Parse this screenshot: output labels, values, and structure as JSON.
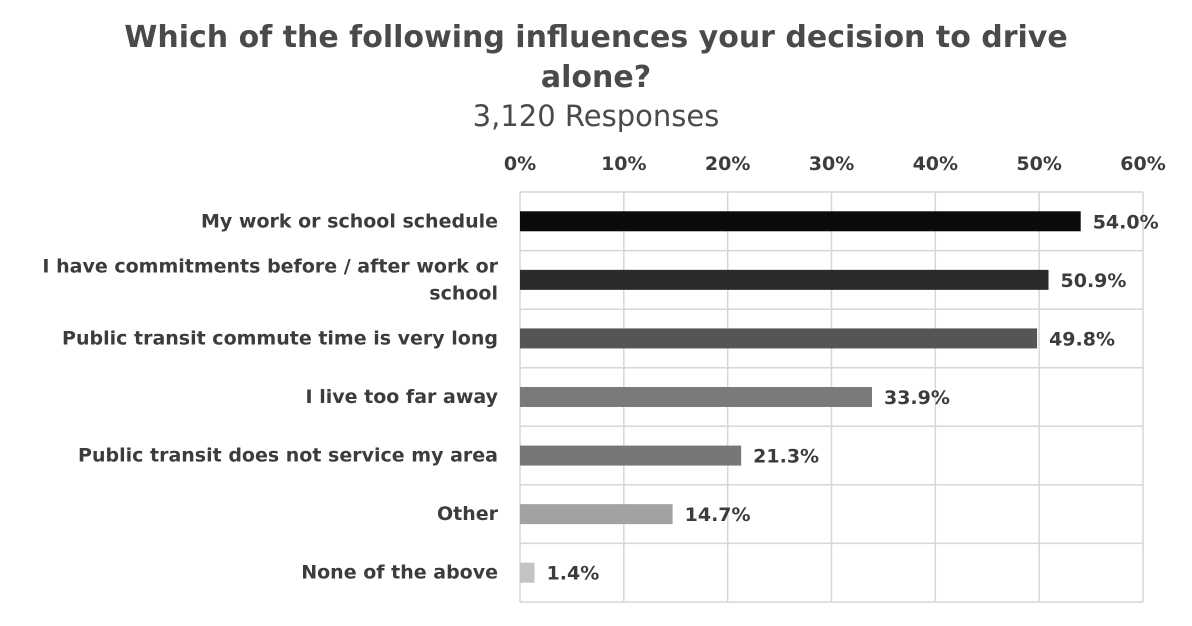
{
  "chart_data": {
    "type": "bar",
    "orientation": "horizontal",
    "title": "Which of the following influences your decision to drive alone?",
    "title_lines": [
      "Which of the following influences your decision to drive",
      "alone?"
    ],
    "subtitle": "3,120 Responses",
    "categories": [
      "My work or school schedule",
      "I have commitments before / after work or school",
      "Public transit commute time is very long",
      "I live too far away",
      "Public transit does not service my area",
      "Other",
      "None of the above"
    ],
    "category_lines": [
      [
        "My work or school schedule"
      ],
      [
        "I have commitments before / after work or",
        "school"
      ],
      [
        "Public transit commute time is very long"
      ],
      [
        "I live too far away"
      ],
      [
        "Public transit does not service my area"
      ],
      [
        "Other"
      ],
      [
        "None of the above"
      ]
    ],
    "values": [
      54.0,
      50.9,
      49.8,
      33.9,
      21.3,
      14.7,
      1.4
    ],
    "value_labels": [
      "54.0%",
      "50.9%",
      "49.8%",
      "33.9%",
      "21.3%",
      "14.7%",
      "1.4%"
    ],
    "bar_colors": [
      "#0b0b0b",
      "#2b2b2b",
      "#555555",
      "#7a7a7a",
      "#777777",
      "#a2a2a2",
      "#c4c4c4"
    ],
    "xlim": [
      0,
      60
    ],
    "xticks": [
      0,
      10,
      20,
      30,
      40,
      50,
      60
    ],
    "xtick_labels": [
      "0%",
      "10%",
      "20%",
      "30%",
      "40%",
      "50%",
      "60%"
    ],
    "axis_position": "top",
    "grid": true,
    "xlabel": "",
    "ylabel": ""
  }
}
